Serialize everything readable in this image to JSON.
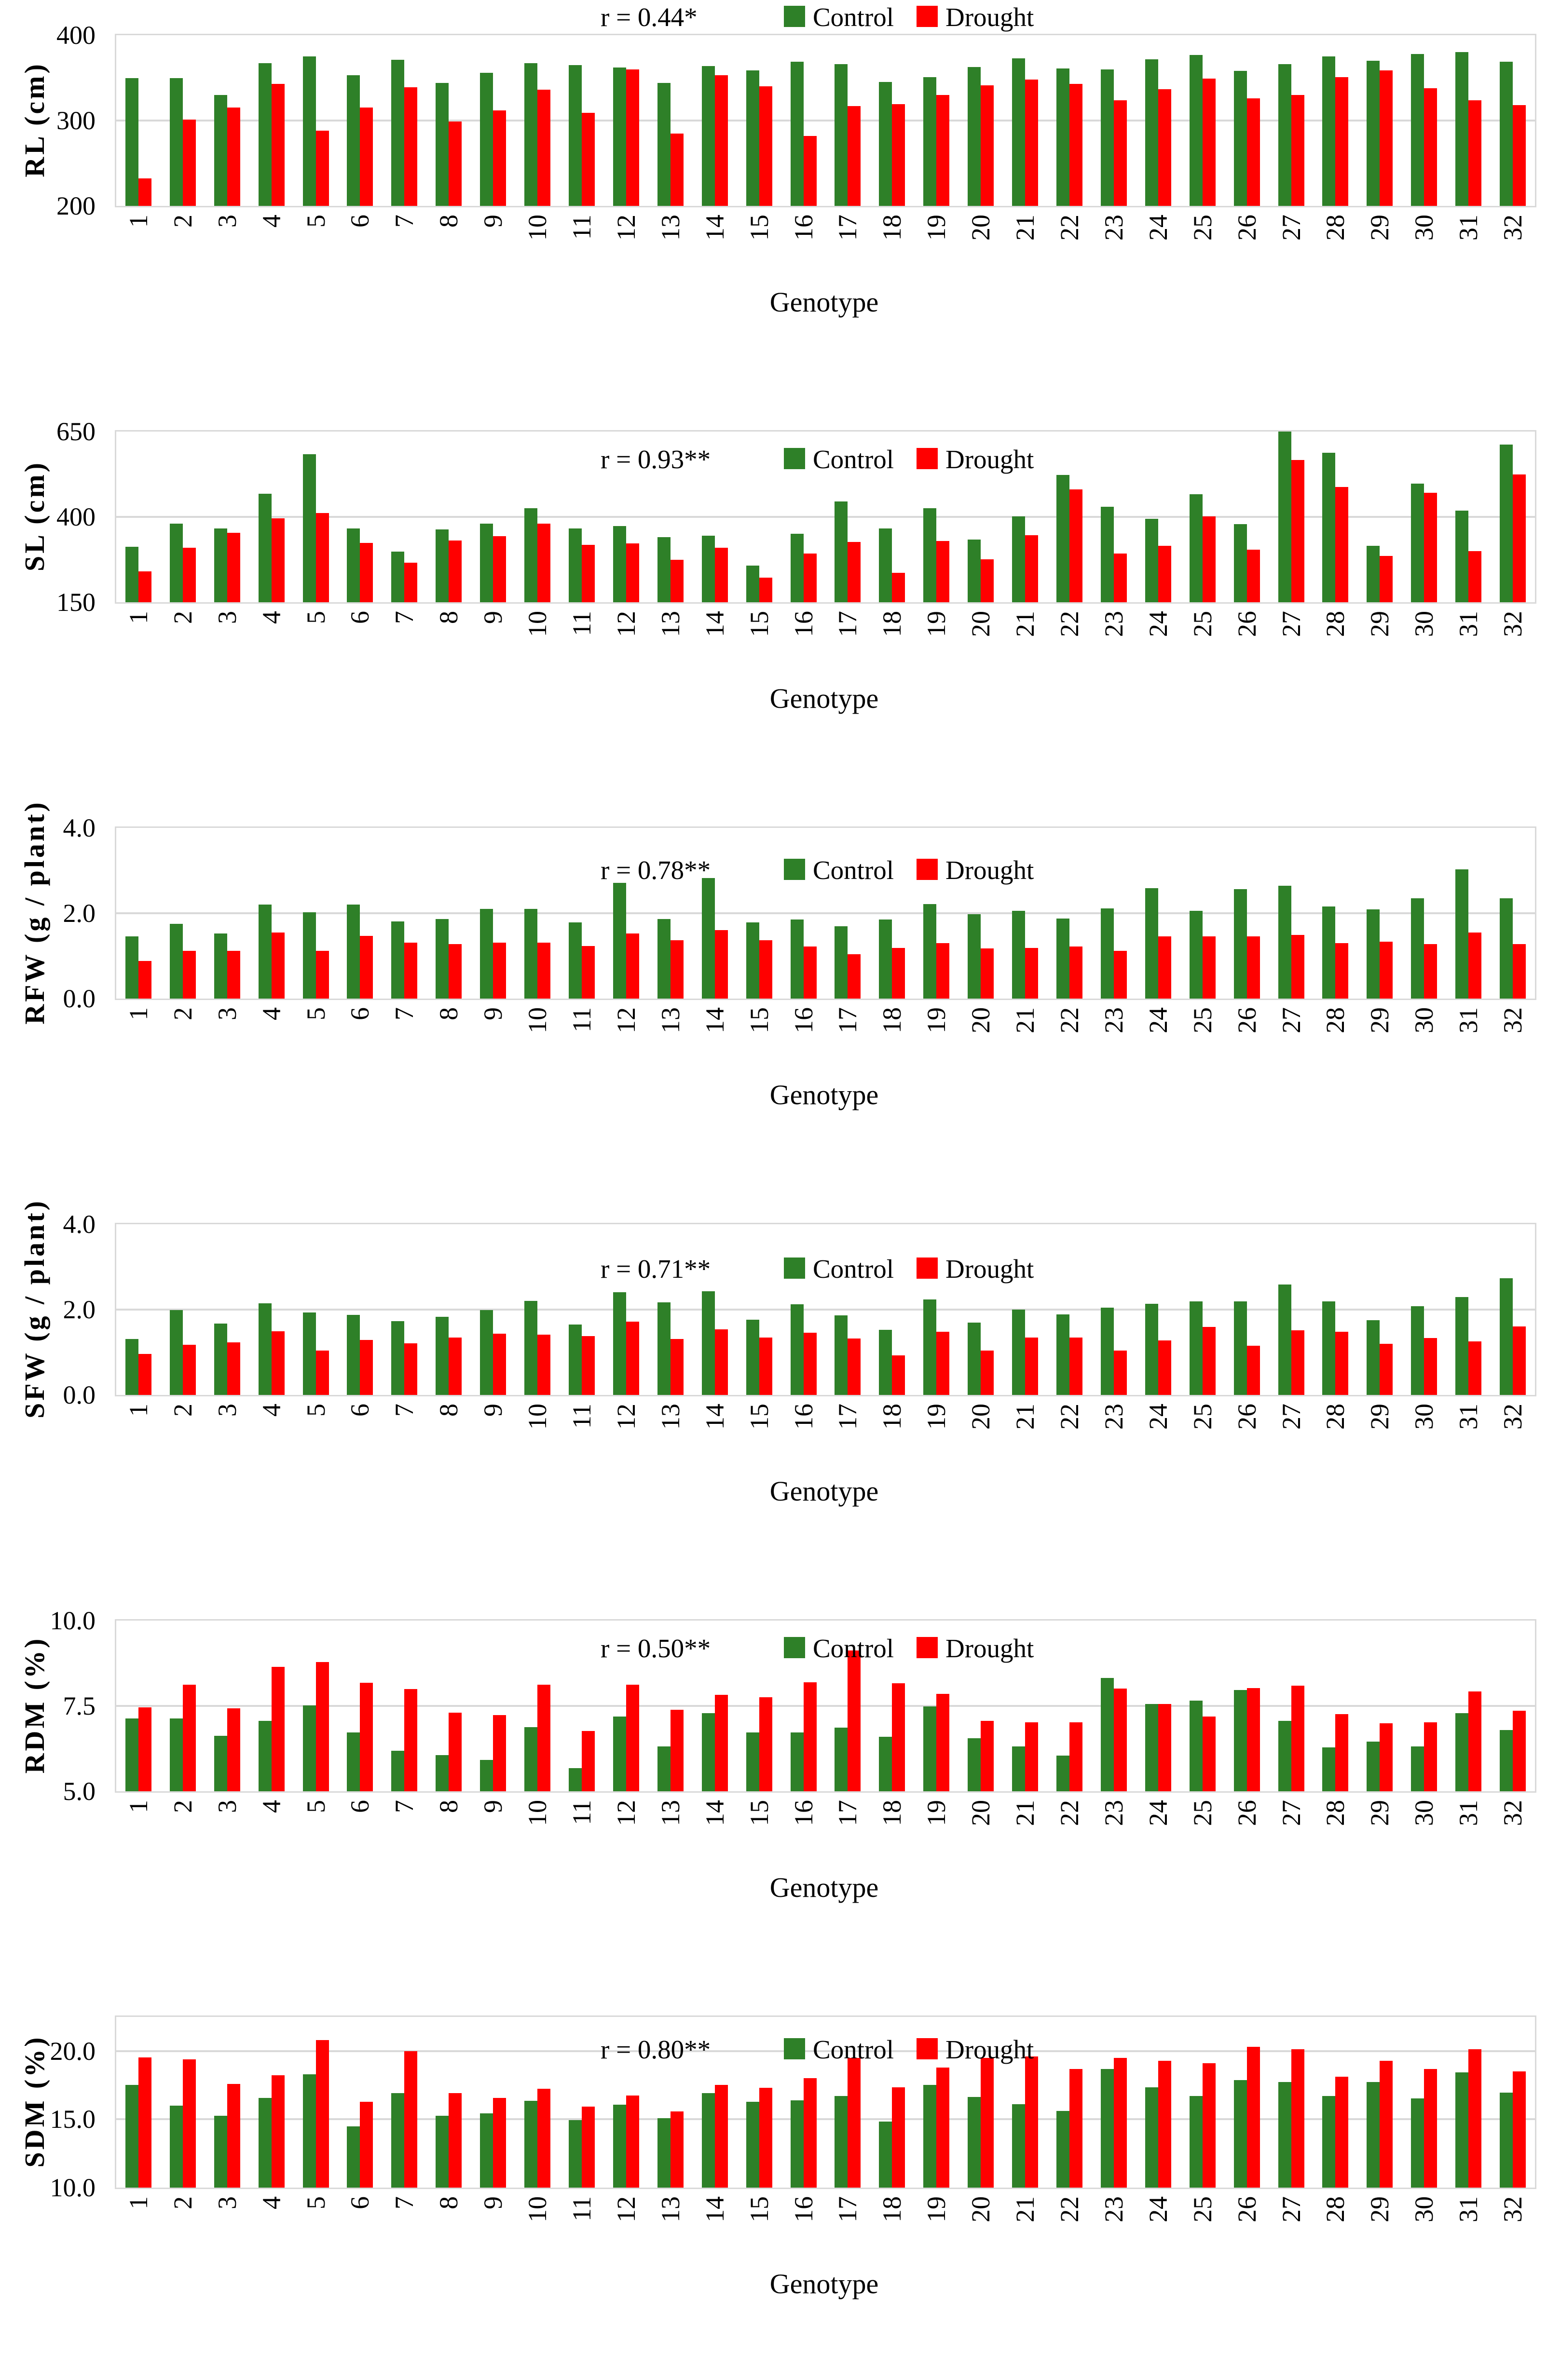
{
  "legend": {
    "control_label": "Control",
    "drought_label": "Drought"
  },
  "colors": {
    "control": "#2e8028",
    "drought": "#ff0000",
    "grid": "#d9d9d9",
    "text": "#000000",
    "background": "#ffffff"
  },
  "categories": [
    "1",
    "2",
    "3",
    "4",
    "5",
    "6",
    "7",
    "8",
    "9",
    "10",
    "11",
    "12",
    "13",
    "14",
    "15",
    "16",
    "17",
    "18",
    "19",
    "20",
    "21",
    "22",
    "23",
    "24",
    "25",
    "26",
    "27",
    "28",
    "29",
    "30",
    "31",
    "32"
  ],
  "chart_data": [
    {
      "type": "bar",
      "r_label": "r = 0.44*",
      "ylabel": "RL (cm)",
      "xlabel": "Genotype",
      "ylim": [
        200,
        400
      ],
      "grid": "horizontal",
      "legend_position": "top",
      "yticks": [
        {
          "label": "400",
          "value": 400
        },
        {
          "label": "300",
          "value": 300
        },
        {
          "label": "200",
          "value": 200
        }
      ],
      "series": [
        {
          "name": "Control",
          "values": [
            350,
            350,
            330,
            367,
            375,
            353,
            371,
            344,
            356,
            367,
            365,
            362,
            344,
            364,
            359,
            369,
            366,
            345,
            351,
            363,
            373,
            361,
            360,
            372,
            377,
            358,
            366,
            375,
            370,
            378,
            380,
            369
          ]
        },
        {
          "name": "Drought",
          "values": [
            232,
            301,
            315,
            343,
            288,
            315,
            339,
            299,
            312,
            336,
            309,
            360,
            285,
            353,
            340,
            282,
            317,
            319,
            330,
            341,
            348,
            343,
            324,
            337,
            349,
            326,
            330,
            351,
            359,
            338,
            324,
            318
          ]
        }
      ]
    },
    {
      "type": "bar",
      "r_label": "r = 0.93**",
      "ylabel": "SL (cm)",
      "xlabel": "Genotype",
      "ylim": [
        150,
        650
      ],
      "grid": "horizontal",
      "legend_position": "inside-top",
      "yticks": [
        {
          "label": "650",
          "value": 650
        },
        {
          "label": "400",
          "value": 400
        },
        {
          "label": "150",
          "value": 150
        }
      ],
      "series": [
        {
          "name": "Control",
          "values": [
            313,
            380,
            366,
            468,
            583,
            366,
            298,
            363,
            380,
            426,
            366,
            373,
            340,
            345,
            258,
            350,
            445,
            366,
            426,
            333,
            402,
            523,
            430,
            394,
            467,
            379,
            650,
            588,
            315,
            498,
            418,
            612
          ]
        },
        {
          "name": "Drought",
          "values": [
            241,
            310,
            353,
            396,
            412,
            324,
            266,
            331,
            343,
            380,
            318,
            323,
            275,
            310,
            222,
            293,
            327,
            236,
            329,
            276,
            347,
            480,
            293,
            315,
            401,
            304,
            566,
            487,
            285,
            470,
            300,
            524
          ]
        }
      ]
    },
    {
      "type": "bar",
      "r_label": "r = 0.78**",
      "ylabel": "RFW (g / plant)",
      "xlabel": "Genotype",
      "ylim": [
        0,
        4
      ],
      "grid": "horizontal",
      "legend_position": "inside-top",
      "yticks": [
        {
          "label": "4.0",
          "value": 4
        },
        {
          "label": "2.0",
          "value": 2
        },
        {
          "label": "0.0",
          "value": 0
        }
      ],
      "series": [
        {
          "name": "Control",
          "values": [
            1.46,
            1.75,
            1.52,
            2.2,
            2.02,
            2.2,
            1.81,
            1.86,
            2.1,
            2.1,
            1.79,
            2.71,
            1.86,
            2.83,
            1.78,
            1.85,
            1.69,
            1.85,
            2.22,
            1.98,
            2.06,
            1.88,
            2.11,
            2.59,
            2.06,
            2.56,
            2.64,
            2.16,
            2.09,
            2.35,
            3.03,
            2.35
          ]
        },
        {
          "name": "Drought",
          "values": [
            0.88,
            1.12,
            1.12,
            1.55,
            1.12,
            1.47,
            1.31,
            1.28,
            1.31,
            1.31,
            1.23,
            1.52,
            1.37,
            1.6,
            1.37,
            1.22,
            1.04,
            1.19,
            1.3,
            1.17,
            1.19,
            1.22,
            1.12,
            1.46,
            1.46,
            1.46,
            1.49,
            1.3,
            1.33,
            1.28,
            1.55,
            1.28
          ]
        }
      ]
    },
    {
      "type": "bar",
      "r_label": "r = 0.71**",
      "ylabel": "SFW (g / plant)",
      "xlabel": "Genotype",
      "ylim": [
        0,
        4
      ],
      "grid": "horizontal",
      "legend_position": "inside-top",
      "yticks": [
        {
          "label": "4.0",
          "value": 4
        },
        {
          "label": "2.0",
          "value": 2
        },
        {
          "label": "0.0",
          "value": 0
        }
      ],
      "series": [
        {
          "name": "Control",
          "values": [
            1.31,
            1.99,
            1.67,
            2.15,
            1.93,
            1.88,
            1.73,
            1.83,
            1.99,
            2.2,
            1.65,
            2.41,
            2.17,
            2.43,
            1.76,
            2.12,
            1.87,
            1.53,
            2.24,
            1.69,
            2.0,
            1.89,
            2.04,
            2.14,
            2.19,
            2.19,
            2.59,
            2.19,
            1.75,
            2.08,
            2.29,
            2.73
          ]
        },
        {
          "name": "Drought",
          "values": [
            0.96,
            1.18,
            1.23,
            1.49,
            1.04,
            1.29,
            1.21,
            1.35,
            1.43,
            1.41,
            1.38,
            1.72,
            1.31,
            1.54,
            1.35,
            1.46,
            1.32,
            0.93,
            1.48,
            1.04,
            1.35,
            1.35,
            1.04,
            1.28,
            1.59,
            1.15,
            1.51,
            1.48,
            1.2,
            1.33,
            1.26,
            1.61
          ]
        }
      ]
    },
    {
      "type": "bar",
      "r_label": "r = 0.50**",
      "ylabel": "RDM (%)",
      "xlabel": "Genotype",
      "ylim": [
        5,
        10
      ],
      "grid": "horizontal",
      "legend_position": "inside-top",
      "yticks": [
        {
          "label": "10.0",
          "value": 10
        },
        {
          "label": "7.5",
          "value": 7.5
        },
        {
          "label": "5.0",
          "value": 5
        }
      ],
      "series": [
        {
          "name": "Control",
          "values": [
            7.13,
            7.13,
            6.62,
            7.06,
            7.52,
            6.73,
            6.19,
            6.06,
            5.92,
            6.88,
            5.68,
            7.19,
            6.32,
            7.29,
            6.73,
            6.73,
            6.86,
            6.6,
            7.48,
            6.55,
            6.32,
            6.05,
            8.32,
            7.55,
            7.65,
            7.96,
            7.06,
            6.29,
            6.46,
            6.32,
            7.29,
            6.79
          ]
        },
        {
          "name": "Drought",
          "values": [
            7.46,
            8.12,
            7.43,
            8.65,
            8.79,
            8.18,
            7.99,
            7.3,
            7.23,
            8.12,
            6.77,
            8.12,
            7.39,
            7.83,
            7.76,
            8.19,
            9.13,
            8.16,
            7.86,
            7.06,
            7.02,
            7.02,
            8.01,
            7.55,
            7.19,
            8.02,
            8.09,
            7.26,
            6.99,
            7.02,
            7.92,
            7.36
          ]
        }
      ]
    },
    {
      "type": "bar",
      "r_label": "r = 0.80**",
      "ylabel": "SDM (%)",
      "xlabel": "Genotype",
      "ylim": [
        10,
        22.5
      ],
      "grid": "horizontal",
      "legend_position": "inside-top",
      "yticks": [
        {
          "label": "20.0",
          "value": 20
        },
        {
          "label": "15.0",
          "value": 15
        },
        {
          "label": "10.0",
          "value": 10
        }
      ],
      "series": [
        {
          "name": "Control",
          "values": [
            17.53,
            15.99,
            15.26,
            16.58,
            18.29,
            14.48,
            16.91,
            15.26,
            15.43,
            16.37,
            14.96,
            16.08,
            15.1,
            16.91,
            16.29,
            16.4,
            16.7,
            14.84,
            17.51,
            16.63,
            16.11,
            15.62,
            18.67,
            17.35,
            16.72,
            17.89,
            17.73,
            16.72,
            17.73,
            16.54,
            18.45,
            16.94
          ]
        },
        {
          "name": "Drought",
          "values": [
            19.54,
            19.39,
            17.61,
            18.22,
            20.8,
            16.29,
            20.0,
            16.91,
            16.58,
            17.23,
            15.94,
            16.75,
            15.59,
            17.53,
            17.3,
            18.02,
            19.51,
            17.35,
            18.78,
            19.51,
            19.62,
            18.67,
            19.51,
            19.28,
            19.1,
            20.32,
            20.14,
            18.13,
            19.28,
            18.67,
            20.15,
            18.52
          ]
        }
      ]
    }
  ]
}
